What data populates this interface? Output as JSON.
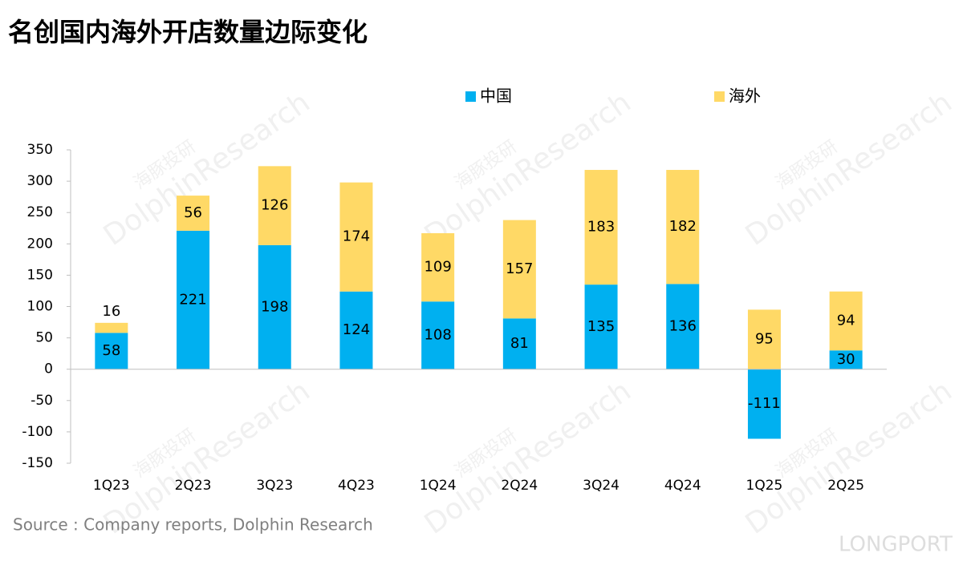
{
  "chart_data": {
    "type": "stacked_bar",
    "title": "名创国内海外开店数量边际变化",
    "categories": [
      "1Q23",
      "2Q23",
      "3Q23",
      "4Q23",
      "1Q24",
      "2Q24",
      "3Q24",
      "4Q24",
      "1Q25",
      "2Q25"
    ],
    "series": [
      {
        "name": "中国",
        "color": "#00b0f0",
        "values": [
          58,
          221,
          198,
          124,
          108,
          81,
          135,
          136,
          -111,
          30
        ]
      },
      {
        "name": "海外",
        "color": "#ffd966",
        "values": [
          16,
          56,
          126,
          174,
          109,
          157,
          183,
          182,
          95,
          94
        ]
      }
    ],
    "ylim": [
      -150,
      350
    ],
    "yticks": [
      -150,
      -100,
      -50,
      0,
      50,
      100,
      150,
      200,
      250,
      300,
      350
    ],
    "legend": "top",
    "source": "Source : Company reports, Dolphin Research",
    "watermarks": [
      "海豚投研",
      "DolphinResearch",
      "LONGPORT"
    ]
  }
}
